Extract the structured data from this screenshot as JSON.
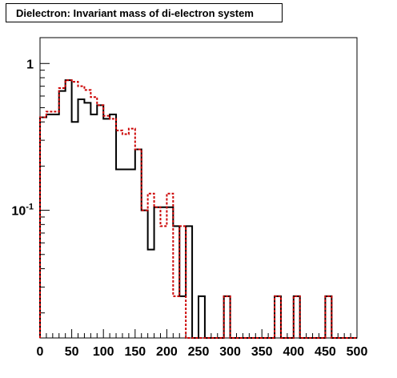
{
  "chart_data": {
    "type": "histogram",
    "title": "Dielectron: Invariant mass of di-electron system",
    "xlim": [
      0,
      500
    ],
    "ylim": [
      0.0135,
      1.5
    ],
    "yscale": "log",
    "grid": false,
    "legend": "none",
    "x_ticks": [
      {
        "value": 0,
        "label": "0"
      },
      {
        "value": 50,
        "label": "50"
      },
      {
        "value": 100,
        "label": "100"
      },
      {
        "value": 150,
        "label": "150"
      },
      {
        "value": 200,
        "label": "200"
      },
      {
        "value": 250,
        "label": "250"
      },
      {
        "value": 300,
        "label": "300"
      },
      {
        "value": 350,
        "label": "350"
      },
      {
        "value": 400,
        "label": "400"
      },
      {
        "value": 450,
        "label": "450"
      },
      {
        "value": 500,
        "label": "500"
      }
    ],
    "y_ticks": [
      {
        "value": 1,
        "label": "1",
        "base": "1",
        "exp": ""
      },
      {
        "value": 0.1,
        "label": "10^-1",
        "base": "10",
        "exp": "-1"
      }
    ],
    "bin_width": 10,
    "series": [
      {
        "color": "#000000",
        "style": "solid",
        "values": [
          0.43,
          0.45,
          0.45,
          0.65,
          0.77,
          0.4,
          0.57,
          0.54,
          0.45,
          0.52,
          0.42,
          0.45,
          0.19,
          0.19,
          0.19,
          0.26,
          0.1,
          0.054,
          0.105,
          0.105,
          0.105,
          0.078,
          0.026,
          0.078,
          0,
          0.026,
          0,
          0,
          0,
          0.026,
          0,
          0,
          0,
          0,
          0,
          0,
          0,
          0.026,
          0,
          0,
          0.026,
          0,
          0,
          0,
          0,
          0.026,
          0,
          0,
          0,
          0
        ]
      },
      {
        "color": "#cc0000",
        "style": "dotted",
        "values": [
          0.43,
          0.47,
          0.47,
          0.68,
          0.77,
          0.75,
          0.7,
          0.66,
          0.59,
          0.52,
          0.44,
          0.42,
          0.35,
          0.33,
          0.36,
          0.26,
          0.1,
          0.13,
          0.105,
          0.078,
          0.13,
          0.026,
          0.078,
          0,
          0,
          0,
          0,
          0,
          0,
          0.026,
          0,
          0,
          0,
          0,
          0,
          0,
          0,
          0.026,
          0,
          0,
          0.026,
          0,
          0,
          0,
          0,
          0.026,
          0,
          0,
          0,
          0
        ]
      }
    ]
  }
}
